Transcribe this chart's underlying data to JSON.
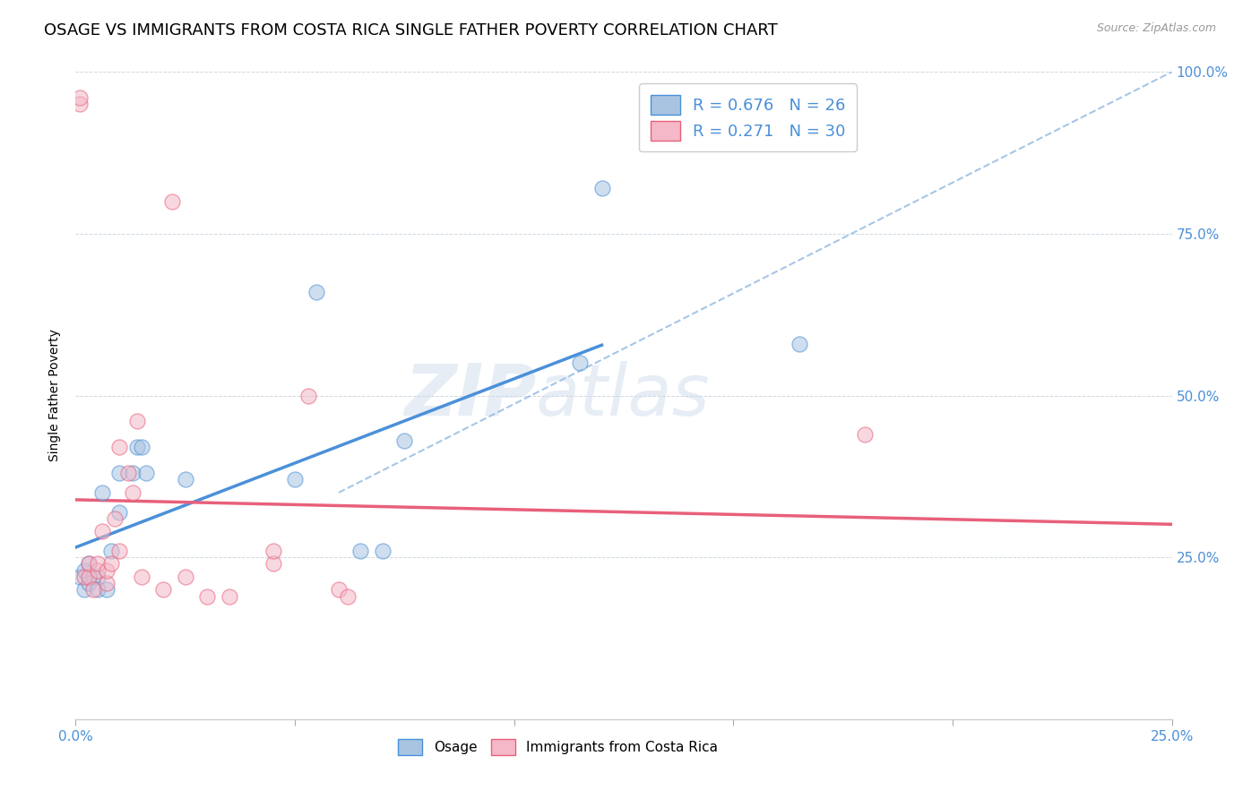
{
  "title": "OSAGE VS IMMIGRANTS FROM COSTA RICA SINGLE FATHER POVERTY CORRELATION CHART",
  "source": "Source: ZipAtlas.com",
  "ylabel": "Single Father Poverty",
  "xlim": [
    0.0,
    0.25
  ],
  "ylim": [
    0.0,
    1.0
  ],
  "xticks": [
    0.0,
    0.05,
    0.1,
    0.15,
    0.2,
    0.25
  ],
  "xtick_labels": [
    "0.0%",
    "",
    "",
    "",
    "",
    "25.0%"
  ],
  "ytick_labels_right": [
    "",
    "25.0%",
    "50.0%",
    "75.0%",
    "100.0%"
  ],
  "yticks_right": [
    0.0,
    0.25,
    0.5,
    0.75,
    1.0
  ],
  "blue_scatter_color": "#a8c4e0",
  "pink_scatter_color": "#f4b8c8",
  "blue_line_color": "#4a90d9",
  "pink_line_color": "#e8607a",
  "dashed_line_color": "#90b8e0",
  "legend_blue_label": "R = 0.676   N = 26",
  "legend_pink_label": "R = 0.271   N = 30",
  "watermark_zip": "ZIP",
  "watermark_atlas": "atlas",
  "bottom_legend_blue": "Osage",
  "bottom_legend_pink": "Immigrants from Costa Rica",
  "osage_x": [
    0.001,
    0.002,
    0.002,
    0.003,
    0.003,
    0.004,
    0.005,
    0.005,
    0.006,
    0.007,
    0.008,
    0.01,
    0.01,
    0.013,
    0.014,
    0.015,
    0.016,
    0.025,
    0.05,
    0.055,
    0.065,
    0.07,
    0.075,
    0.115,
    0.12,
    0.165
  ],
  "osage_y": [
    0.22,
    0.23,
    0.2,
    0.24,
    0.21,
    0.22,
    0.22,
    0.2,
    0.35,
    0.2,
    0.26,
    0.32,
    0.38,
    0.38,
    0.42,
    0.42,
    0.38,
    0.37,
    0.37,
    0.66,
    0.26,
    0.26,
    0.43,
    0.55,
    0.82,
    0.58
  ],
  "cr_x": [
    0.001,
    0.001,
    0.002,
    0.003,
    0.003,
    0.004,
    0.005,
    0.005,
    0.006,
    0.007,
    0.007,
    0.008,
    0.009,
    0.01,
    0.01,
    0.012,
    0.013,
    0.014,
    0.015,
    0.02,
    0.022,
    0.025,
    0.03,
    0.035,
    0.045,
    0.045,
    0.053,
    0.06,
    0.062,
    0.18
  ],
  "cr_y": [
    0.95,
    0.96,
    0.22,
    0.22,
    0.24,
    0.2,
    0.23,
    0.24,
    0.29,
    0.21,
    0.23,
    0.24,
    0.31,
    0.26,
    0.42,
    0.38,
    0.35,
    0.46,
    0.22,
    0.2,
    0.8,
    0.22,
    0.19,
    0.19,
    0.24,
    0.26,
    0.5,
    0.2,
    0.19,
    0.44
  ],
  "title_fontsize": 13,
  "axis_label_fontsize": 10,
  "tick_fontsize": 11,
  "marker_size": 150,
  "marker_alpha": 0.55
}
